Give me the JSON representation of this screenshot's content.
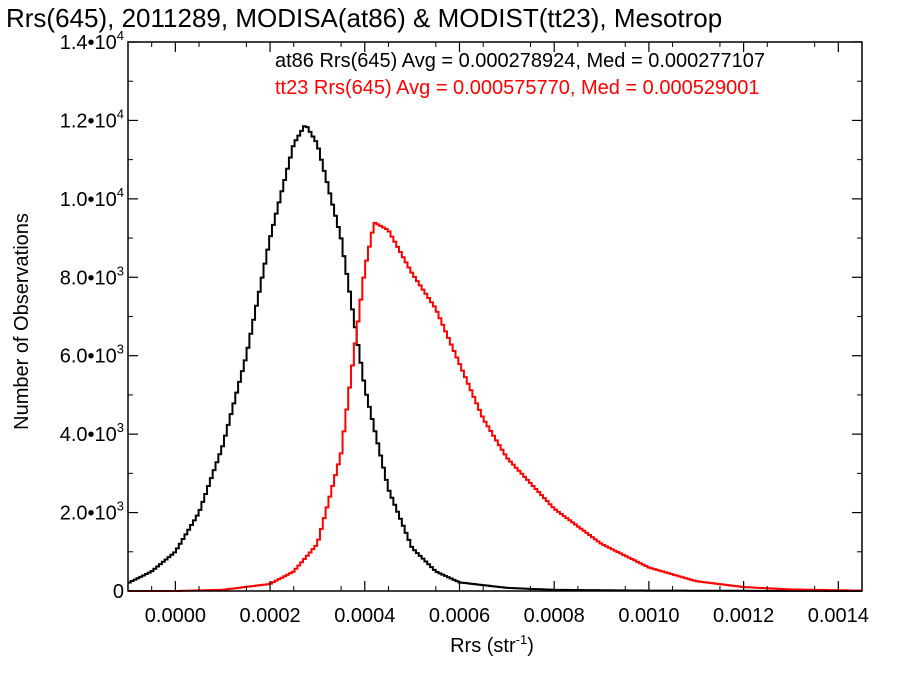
{
  "chart_data": {
    "type": "histogram",
    "title": "Rrs(645), 2011289, MODISA(at86) & MODIST(tt23), Mesotrop",
    "xlabel": "Rrs (str",
    "xlabel_sup": "-1",
    "xlabel_end": ")",
    "ylabel": "Number of Observations",
    "xlim": [
      -0.0001,
      0.00145
    ],
    "ylim": [
      0,
      14000
    ],
    "x_ticks": [
      {
        "value": 0.0,
        "label": "0.0000"
      },
      {
        "value": 0.0002,
        "label": "0.0002"
      },
      {
        "value": 0.0004,
        "label": "0.0004"
      },
      {
        "value": 0.0006,
        "label": "0.0006"
      },
      {
        "value": 0.0008,
        "label": "0.0008"
      },
      {
        "value": 0.001,
        "label": "0.0010"
      },
      {
        "value": 0.0012,
        "label": "0.0012"
      },
      {
        "value": 0.0014,
        "label": "0.0014"
      }
    ],
    "y_ticks": [
      {
        "value": 0,
        "mant": "0",
        "exp": ""
      },
      {
        "value": 2000,
        "mant": "2.0•10",
        "exp": "3"
      },
      {
        "value": 4000,
        "mant": "4.0•10",
        "exp": "3"
      },
      {
        "value": 6000,
        "mant": "6.0•10",
        "exp": "3"
      },
      {
        "value": 8000,
        "mant": "8.0•10",
        "exp": "3"
      },
      {
        "value": 10000,
        "mant": "1.0•10",
        "exp": "4"
      },
      {
        "value": 12000,
        "mant": "1.2•10",
        "exp": "4"
      },
      {
        "value": 14000,
        "mant": "1.4•10",
        "exp": "4"
      }
    ],
    "grid": false,
    "legend_position": "top-right",
    "series": [
      {
        "label": "at86 Rrs(645) Avg = 0.000278924, Med = 0.000277107",
        "color": "#000000",
        "points": [
          [
            -0.0001,
            200
          ],
          [
            -5e-05,
            500
          ],
          [
            0.0,
            1000
          ],
          [
            5e-05,
            2000
          ],
          [
            0.0001,
            3700
          ],
          [
            0.00015,
            6000
          ],
          [
            0.0002,
            9000
          ],
          [
            0.00025,
            11400
          ],
          [
            0.000275,
            11900
          ],
          [
            0.0003,
            11400
          ],
          [
            0.00035,
            9000
          ],
          [
            0.0004,
            5200
          ],
          [
            0.00045,
            2600
          ],
          [
            0.0005,
            1100
          ],
          [
            0.00055,
            500
          ],
          [
            0.0006,
            220
          ],
          [
            0.0007,
            80
          ],
          [
            0.0008,
            30
          ],
          [
            0.001,
            10
          ],
          [
            0.0012,
            5
          ],
          [
            0.00145,
            0
          ]
        ]
      },
      {
        "label": "tt23 Rrs(645) Avg = 0.000575770, Med = 0.000529001",
        "color": "#ff0000",
        "points": [
          [
            -0.0001,
            0
          ],
          [
            0.0,
            0
          ],
          [
            0.0001,
            30
          ],
          [
            0.0002,
            180
          ],
          [
            0.00025,
            500
          ],
          [
            0.0003,
            1200
          ],
          [
            0.00035,
            3500
          ],
          [
            0.0004,
            8200
          ],
          [
            0.00042,
            9400
          ],
          [
            0.00045,
            9200
          ],
          [
            0.0005,
            8100
          ],
          [
            0.00055,
            7200
          ],
          [
            0.0006,
            5800
          ],
          [
            0.00065,
            4400
          ],
          [
            0.0007,
            3400
          ],
          [
            0.0008,
            2100
          ],
          [
            0.0009,
            1200
          ],
          [
            0.001,
            600
          ],
          [
            0.0011,
            250
          ],
          [
            0.0012,
            100
          ],
          [
            0.0013,
            40
          ],
          [
            0.00145,
            10
          ]
        ]
      }
    ]
  }
}
